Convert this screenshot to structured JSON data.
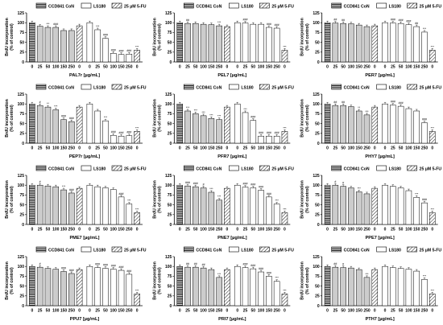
{
  "legend": {
    "ccd_label": "CCD841 CoN",
    "ls_label": "LS180",
    "fu_label": "25 µM 5-FU"
  },
  "axis": {
    "ylabel_line1": "BrdU incorporation",
    "ylabel_line2": "(% of control)",
    "yticks": [
      "0",
      "25",
      "50",
      "75",
      "100",
      "125"
    ],
    "ylim": [
      0,
      125
    ]
  },
  "colors": {
    "bar_fill": "#cccccc",
    "bar_stroke": "#000000",
    "grid": "#000000"
  },
  "chart_data": [
    {
      "type": "bar",
      "xlabel": "PAL7r [µg/mL]",
      "categories": [
        "0",
        "25",
        "50",
        "100",
        "150",
        "250",
        "0",
        "0",
        "25",
        "50",
        "100",
        "150",
        "250",
        "0"
      ],
      "groups": [
        "CCD841 CoN",
        "CCD841 CoN",
        "CCD841 CoN",
        "CCD841 CoN",
        "CCD841 CoN",
        "CCD841 CoN",
        "5-FU",
        "LS180",
        "LS180",
        "LS180",
        "LS180",
        "LS180",
        "LS180",
        "5-FU"
      ],
      "values": [
        100,
        91,
        88,
        88,
        80,
        80,
        92,
        100,
        82,
        60,
        22,
        19,
        20,
        30
      ],
      "annotations": [
        "",
        "",
        "***",
        "###",
        "",
        "",
        "",
        "",
        "***",
        "###",
        "###",
        "###",
        "###",
        "***"
      ]
    },
    {
      "type": "bar",
      "xlabel": "PEL7 [µg/mL]",
      "categories": [
        "0",
        "25",
        "50",
        "100",
        "150",
        "250",
        "0",
        "0",
        "25",
        "50",
        "100",
        "150",
        "250",
        "0"
      ],
      "groups": [
        "CCD841 CoN",
        "CCD841 CoN",
        "CCD841 CoN",
        "CCD841 CoN",
        "CCD841 CoN",
        "CCD841 CoN",
        "5-FU",
        "LS180",
        "LS180",
        "LS180",
        "LS180",
        "LS180",
        "LS180",
        "5-FU"
      ],
      "values": [
        100,
        98,
        98,
        96,
        95,
        92,
        90,
        100,
        99,
        96,
        96,
        88,
        86,
        30
      ],
      "annotations": [
        "",
        "##",
        "",
        "",
        "",
        "***",
        "",
        "",
        "###",
        "",
        "",
        "###",
        "###",
        "***"
      ]
    },
    {
      "type": "bar",
      "xlabel": "PER7 [µg/mL]",
      "categories": [
        "0",
        "25",
        "50",
        "100",
        "150",
        "250",
        "0",
        "0",
        "25",
        "50",
        "100",
        "150",
        "250",
        "0"
      ],
      "groups": [
        "CCD841 CoN",
        "CCD841 CoN",
        "CCD841 CoN",
        "CCD841 CoN",
        "CCD841 CoN",
        "CCD841 CoN",
        "5-FU",
        "LS180",
        "LS180",
        "LS180",
        "LS180",
        "LS180",
        "LS180",
        "5-FU"
      ],
      "values": [
        100,
        99,
        98,
        97,
        94,
        90,
        92,
        100,
        99,
        98,
        95,
        90,
        76,
        30
      ],
      "annotations": [
        "",
        "##",
        "##",
        "",
        "",
        "",
        "",
        "",
        "###",
        "###",
        "###",
        "##",
        "***",
        "***"
      ]
    },
    {
      "type": "bar",
      "xlabel": "PEP7r [µg/mL]",
      "categories": [
        "0",
        "25",
        "50",
        "100",
        "150",
        "250",
        "0",
        "0",
        "25",
        "50",
        "100",
        "150",
        "250",
        "0"
      ],
      "groups": [
        "CCD841 CoN",
        "CCD841 CoN",
        "CCD841 CoN",
        "CCD841 CoN",
        "CCD841 CoN",
        "CCD841 CoN",
        "5-FU",
        "LS180",
        "LS180",
        "LS180",
        "LS180",
        "LS180",
        "LS180",
        "5-FU"
      ],
      "values": [
        100,
        96,
        92,
        85,
        60,
        55,
        92,
        100,
        82,
        57,
        20,
        18,
        19,
        30
      ],
      "annotations": [
        "",
        "#",
        "**",
        "***",
        "###",
        "###",
        "",
        "",
        "",
        "***",
        "###",
        "###",
        "###",
        "***"
      ]
    },
    {
      "type": "bar",
      "xlabel": "PFR7 [µg/mL]",
      "categories": [
        "0",
        "25",
        "50",
        "100",
        "150",
        "250",
        "0",
        "0",
        "25",
        "50",
        "100",
        "150",
        "250",
        "0"
      ],
      "groups": [
        "CCD841 CoN",
        "CCD841 CoN",
        "CCD841 CoN",
        "CCD841 CoN",
        "CCD841 CoN",
        "CCD841 CoN",
        "5-FU",
        "LS180",
        "LS180",
        "LS180",
        "LS180",
        "LS180",
        "LS180",
        "5-FU"
      ],
      "values": [
        100,
        82,
        75,
        70,
        63,
        60,
        92,
        100,
        78,
        58,
        18,
        18,
        18,
        30
      ],
      "annotations": [
        "",
        "***",
        "***",
        "***",
        "***",
        "***",
        "",
        "",
        "***",
        "###",
        "###",
        "###",
        "###",
        "***"
      ]
    },
    {
      "type": "bar",
      "xlabel": "PHY7 [µg/mL]",
      "categories": [
        "0",
        "25",
        "50",
        "100",
        "150",
        "250",
        "0",
        "0",
        "25",
        "50",
        "100",
        "150",
        "250",
        "0"
      ],
      "groups": [
        "CCD841 CoN",
        "CCD841 CoN",
        "CCD841 CoN",
        "CCD841 CoN",
        "CCD841 CoN",
        "CCD841 CoN",
        "5-FU",
        "LS180",
        "LS180",
        "LS180",
        "LS180",
        "LS180",
        "LS180",
        "5-FU"
      ],
      "values": [
        100,
        96,
        96,
        93,
        82,
        72,
        92,
        100,
        97,
        94,
        88,
        82,
        52,
        30
      ],
      "annotations": [
        "",
        "##",
        "##",
        "",
        "**",
        "***",
        "",
        "",
        "###",
        "###",
        "",
        "",
        "###",
        "***"
      ]
    },
    {
      "type": "bar",
      "xlabel": "PME7 [µg/mL]",
      "categories": [
        "0",
        "25",
        "50",
        "100",
        "150",
        "250",
        "0",
        "0",
        "25",
        "50",
        "100",
        "150",
        "250",
        "0"
      ],
      "groups": [
        "CCD841 CoN",
        "CCD841 CoN",
        "CCD841 CoN",
        "CCD841 CoN",
        "CCD841 CoN",
        "CCD841 CoN",
        "5-FU",
        "LS180",
        "LS180",
        "LS180",
        "LS180",
        "LS180",
        "LS180",
        "5-FU"
      ],
      "values": [
        100,
        100,
        98,
        96,
        88,
        80,
        92,
        100,
        96,
        93,
        89,
        70,
        52,
        30
      ],
      "annotations": [
        "",
        "#",
        "",
        "",
        "***",
        "###",
        "",
        "",
        "",
        "",
        "",
        "###",
        "***",
        "***"
      ]
    },
    {
      "type": "bar",
      "xlabel": "PNE7 [µg/mL]",
      "categories": [
        "0",
        "25",
        "50",
        "100",
        "150",
        "250",
        "0",
        "0",
        "25",
        "50",
        "100",
        "150",
        "250",
        "0"
      ],
      "groups": [
        "CCD841 CoN",
        "CCD841 CoN",
        "CCD841 CoN",
        "CCD841 CoN",
        "CCD841 CoN",
        "CCD841 CoN",
        "5-FU",
        "LS180",
        "LS180",
        "LS180",
        "LS180",
        "LS180",
        "LS180",
        "5-FU"
      ],
      "values": [
        100,
        98,
        96,
        93,
        82,
        62,
        92,
        100,
        95,
        93,
        87,
        70,
        52,
        30
      ],
      "annotations": [
        "",
        "###",
        "###",
        "#",
        "***",
        "***",
        "",
        "",
        "###",
        "###",
        "###",
        "###",
        "***",
        "***"
      ]
    },
    {
      "type": "bar",
      "xlabel": "PPE7 [µg/mL]",
      "categories": [
        "0",
        "25",
        "50",
        "100",
        "150",
        "250",
        "0",
        "0",
        "25",
        "50",
        "100",
        "150",
        "250",
        "0"
      ],
      "groups": [
        "CCD841 CoN",
        "CCD841 CoN",
        "CCD841 CoN",
        "CCD841 CoN",
        "CCD841 CoN",
        "CCD841 CoN",
        "5-FU",
        "LS180",
        "LS180",
        "LS180",
        "LS180",
        "LS180",
        "LS180",
        "5-FU"
      ],
      "values": [
        100,
        100,
        97,
        93,
        83,
        78,
        92,
        100,
        97,
        93,
        86,
        69,
        55,
        30
      ],
      "annotations": [
        "",
        "#",
        "#",
        "",
        "***",
        "",
        "",
        "",
        "",
        "",
        "",
        "***",
        "###",
        "***"
      ]
    },
    {
      "type": "bar",
      "xlabel": "PPU7 [µg/mL]",
      "categories": [
        "0",
        "25",
        "50",
        "100",
        "150",
        "250",
        "0",
        "0",
        "25",
        "50",
        "100",
        "150",
        "250",
        "0"
      ],
      "groups": [
        "CCD841 CoN",
        "CCD841 CoN",
        "CCD841 CoN",
        "CCD841 CoN",
        "CCD841 CoN",
        "CCD841 CoN",
        "5-FU",
        "LS180",
        "LS180",
        "LS180",
        "LS180",
        "LS180",
        "LS180",
        "5-FU"
      ],
      "values": [
        100,
        98,
        95,
        93,
        87,
        82,
        92,
        100,
        97,
        95,
        93,
        90,
        80,
        30
      ],
      "annotations": [
        "",
        "#",
        "",
        "",
        "###",
        "###",
        "",
        "",
        "###",
        "###",
        "###",
        "###",
        "###",
        "***"
      ]
    },
    {
      "type": "bar",
      "xlabel": "PRI7 [µg/mL]",
      "categories": [
        "0",
        "25",
        "50",
        "100",
        "150",
        "250",
        "0",
        "0",
        "25",
        "50",
        "100",
        "150",
        "250",
        "0"
      ],
      "groups": [
        "CCD841 CoN",
        "CCD841 CoN",
        "CCD841 CoN",
        "CCD841 CoN",
        "CCD841 CoN",
        "CCD841 CoN",
        "5-FU",
        "LS180",
        "LS180",
        "LS180",
        "LS180",
        "LS180",
        "LS180",
        "5-FU"
      ],
      "values": [
        100,
        98,
        98,
        96,
        92,
        72,
        92,
        100,
        97,
        94,
        86,
        75,
        62,
        30
      ],
      "annotations": [
        "",
        "##",
        "##",
        "##",
        "",
        "***",
        "",
        "",
        "###",
        "###",
        "###",
        "###",
        "***",
        "***"
      ]
    },
    {
      "type": "bar",
      "xlabel": "PTH7 [µg/mL]",
      "categories": [
        "0",
        "25",
        "50",
        "100",
        "150",
        "250",
        "0",
        "0",
        "25",
        "50",
        "100",
        "150",
        "250",
        "0"
      ],
      "groups": [
        "CCD841 CoN",
        "CCD841 CoN",
        "CCD841 CoN",
        "CCD841 CoN",
        "CCD841 CoN",
        "CCD841 CoN",
        "5-FU",
        "LS180",
        "LS180",
        "LS180",
        "LS180",
        "LS180",
        "LS180",
        "5-FU"
      ],
      "values": [
        100,
        98,
        97,
        96,
        92,
        72,
        92,
        100,
        97,
        95,
        93,
        88,
        67,
        30
      ],
      "annotations": [
        "",
        "##",
        "#",
        "",
        "",
        "***",
        "",
        "",
        "",
        "",
        "",
        "",
        "***",
        "***"
      ]
    }
  ]
}
